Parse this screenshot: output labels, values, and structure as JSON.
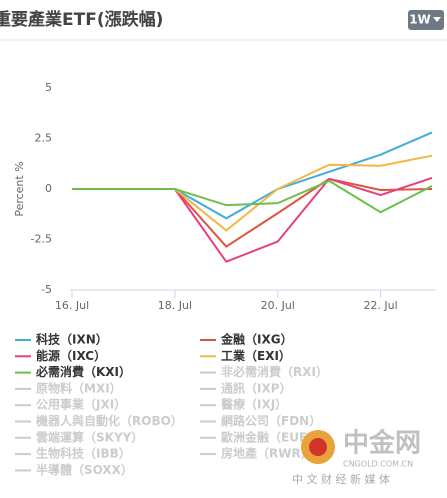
{
  "chart_data": {
    "type": "line",
    "title": "重要產業ETF(漲跌幅)",
    "range_button": "1W",
    "y_label": "Percent %",
    "x": [
      16,
      17,
      18,
      19,
      20,
      21,
      22,
      23
    ],
    "xlim": [
      16,
      23
    ],
    "xticks": [
      {
        "value": 16,
        "label": "16. Jul"
      },
      {
        "value": 18,
        "label": "18. Jul"
      },
      {
        "value": 20,
        "label": "20. Jul"
      },
      {
        "value": 22,
        "label": "22. Jul"
      }
    ],
    "ylim": [
      -5,
      5
    ],
    "yticks": [
      5,
      2.5,
      0,
      -2.5,
      -5
    ],
    "grid": false,
    "series": [
      {
        "name": "科技（IXN）",
        "color": "#42aed8",
        "values": [
          0,
          0,
          0,
          -1.45,
          0,
          0.85,
          1.7,
          2.8
        ]
      },
      {
        "name": "金融（IXG）",
        "color": "#e0533c",
        "values": [
          0,
          0,
          0,
          -2.85,
          -1.2,
          0.5,
          -0.05,
          0
        ]
      },
      {
        "name": "能源（IXC）",
        "color": "#e8407c",
        "values": [
          0,
          0,
          0,
          -3.6,
          -2.6,
          0.5,
          -0.3,
          0.55
        ]
      },
      {
        "name": "工業（EXI）",
        "color": "#f0b845",
        "values": [
          0,
          0,
          0,
          -2.05,
          0,
          1.2,
          1.15,
          1.65
        ]
      },
      {
        "name": "必需消費（KXI）",
        "color": "#6cc04a",
        "values": [
          0,
          0,
          0,
          -0.8,
          -0.7,
          0.4,
          -1.15,
          0.15
        ]
      }
    ],
    "inactive_color": "#cccccc",
    "inactive_series": [
      "非必需消費（RXI）",
      "原物料（MXI）",
      "通訊（IXP）",
      "公用事業（JXI）",
      "醫療（IXJ）",
      "機器人與自動化（ROBO）",
      "網路公司（FDN）",
      "雲端運算（SKYY）",
      "歐洲金融（EUFN）",
      "生物科技（IBB）",
      "房地產（RWR）",
      "半導體（SOXX）"
    ],
    "watermark": {
      "logo": "中金网",
      "site": "CNGOLD.COM.CN",
      "slogan": "中 文 财 经 新 媒 体"
    }
  }
}
